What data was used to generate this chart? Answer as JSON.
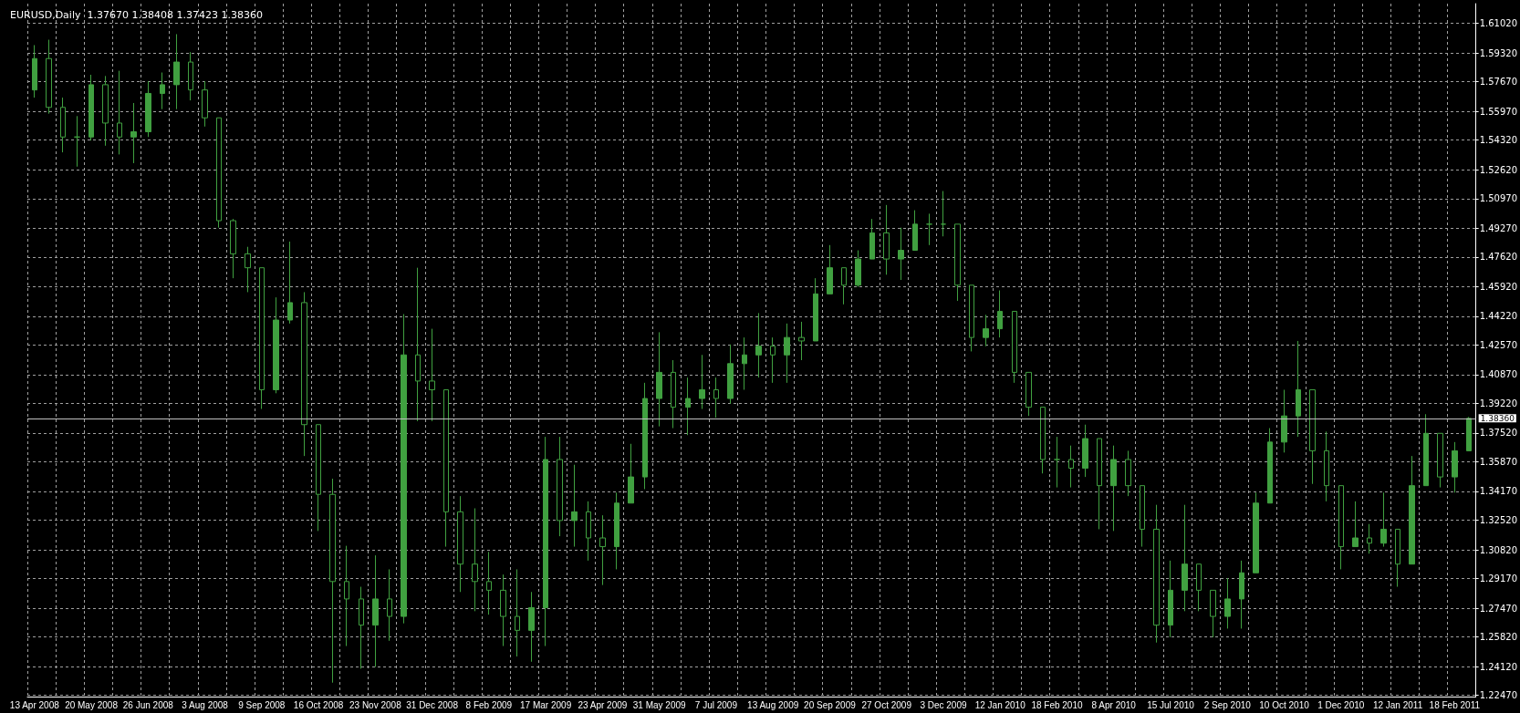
{
  "chart_data": {
    "type": "candlestick",
    "title": "EURUSD,Daily  1.37670 1.38408 1.37423 1.38360",
    "categories": [
      "13 Apr 2008",
      null,
      null,
      null,
      "20 May 2008",
      null,
      null,
      null,
      "26 Jun 2008",
      null,
      null,
      null,
      "3 Aug 2008",
      null,
      null,
      null,
      "9 Sep 2008",
      null,
      null,
      null,
      "16 Oct 2008",
      null,
      null,
      null,
      "23 Nov 2008",
      null,
      null,
      null,
      "31 Dec 2008",
      null,
      null,
      null,
      "8 Feb 2009",
      null,
      null,
      null,
      "17 Mar 2009",
      null,
      null,
      null,
      "23 Apr 2009",
      null,
      null,
      null,
      "31 May 2009",
      null,
      null,
      null,
      "7 Jul 2009",
      null,
      null,
      null,
      "13 Aug 2009",
      null,
      null,
      null,
      "20 Sep 2009",
      null,
      null,
      null,
      "27 Oct 2009",
      null,
      null,
      null,
      "3 Dec 2009",
      null,
      null,
      null,
      "12 Jan 2010",
      null,
      null,
      null,
      "18 Feb 2010",
      null,
      null,
      null,
      "8 Apr 2010",
      null,
      null,
      null,
      "15 Jul 2010",
      null,
      null,
      null,
      "2 Sep 2010",
      null,
      null,
      null,
      "10 Oct 2010",
      null,
      null,
      null,
      "1 Dec 2010",
      null,
      null,
      null,
      "12 Jan 2011",
      null,
      null,
      null,
      "18 Feb 2011",
      null
    ],
    "color": "#40a040",
    "ohlc": [
      [
        1.572,
        1.5977,
        1.5676,
        1.59
      ],
      [
        1.59,
        1.6008,
        1.5584,
        1.562
      ],
      [
        1.562,
        1.5676,
        1.5362,
        1.545
      ],
      [
        1.545,
        1.557,
        1.528,
        1.545
      ],
      [
        1.545,
        1.5807,
        1.543,
        1.575
      ],
      [
        1.575,
        1.58,
        1.54,
        1.553
      ],
      [
        1.553,
        1.583,
        1.535,
        1.545
      ],
      [
        1.545,
        1.5645,
        1.53,
        1.548
      ],
      [
        1.548,
        1.577,
        1.545,
        1.57
      ],
      [
        1.57,
        1.582,
        1.561,
        1.575
      ],
      [
        1.575,
        1.604,
        1.561,
        1.588
      ],
      [
        1.588,
        1.5937,
        1.566,
        1.572
      ],
      [
        1.572,
        1.577,
        1.551,
        1.556
      ],
      [
        1.556,
        1.556,
        1.493,
        1.497
      ],
      [
        1.497,
        1.498,
        1.464,
        1.478
      ],
      [
        1.478,
        1.482,
        1.456,
        1.47
      ],
      [
        1.47,
        1.47,
        1.389,
        1.4
      ],
      [
        1.4,
        1.453,
        1.398,
        1.44
      ],
      [
        1.44,
        1.485,
        1.438,
        1.45
      ],
      [
        1.45,
        1.456,
        1.362,
        1.38
      ],
      [
        1.38,
        1.38,
        1.319,
        1.34
      ],
      [
        1.34,
        1.349,
        1.232,
        1.29
      ],
      [
        1.29,
        1.3105,
        1.253,
        1.28
      ],
      [
        1.28,
        1.287,
        1.24,
        1.265
      ],
      [
        1.265,
        1.305,
        1.241,
        1.28
      ],
      [
        1.28,
        1.297,
        1.256,
        1.27
      ],
      [
        1.27,
        1.4434,
        1.266,
        1.42
      ],
      [
        1.42,
        1.47,
        1.382,
        1.405
      ],
      [
        1.405,
        1.435,
        1.382,
        1.4
      ],
      [
        1.4,
        1.4,
        1.31,
        1.33
      ],
      [
        1.33,
        1.339,
        1.284,
        1.3
      ],
      [
        1.3,
        1.332,
        1.273,
        1.29
      ],
      [
        1.29,
        1.307,
        1.271,
        1.285
      ],
      [
        1.285,
        1.294,
        1.253,
        1.27
      ],
      [
        1.27,
        1.297,
        1.247,
        1.262
      ],
      [
        1.262,
        1.284,
        1.244,
        1.275
      ],
      [
        1.275,
        1.373,
        1.253,
        1.36
      ],
      [
        1.36,
        1.373,
        1.316,
        1.325
      ],
      [
        1.325,
        1.357,
        1.31,
        1.33
      ],
      [
        1.33,
        1.336,
        1.302,
        1.315
      ],
      [
        1.315,
        1.328,
        1.288,
        1.31
      ],
      [
        1.31,
        1.341,
        1.297,
        1.335
      ],
      [
        1.335,
        1.369,
        1.335,
        1.35
      ],
      [
        1.35,
        1.404,
        1.343,
        1.395
      ],
      [
        1.395,
        1.433,
        1.379,
        1.41
      ],
      [
        1.41,
        1.417,
        1.378,
        1.39
      ],
      [
        1.39,
        1.407,
        1.374,
        1.395
      ],
      [
        1.395,
        1.42,
        1.389,
        1.4
      ],
      [
        1.4,
        1.407,
        1.384,
        1.395
      ],
      [
        1.395,
        1.426,
        1.392,
        1.415
      ],
      [
        1.415,
        1.43,
        1.4,
        1.42
      ],
      [
        1.42,
        1.444,
        1.407,
        1.425
      ],
      [
        1.425,
        1.43,
        1.404,
        1.42
      ],
      [
        1.42,
        1.438,
        1.404,
        1.43
      ],
      [
        1.43,
        1.439,
        1.417,
        1.428
      ],
      [
        1.428,
        1.464,
        1.428,
        1.455
      ],
      [
        1.455,
        1.483,
        1.455,
        1.47
      ],
      [
        1.47,
        1.47,
        1.449,
        1.46
      ],
      [
        1.46,
        1.48,
        1.459,
        1.475
      ],
      [
        1.475,
        1.498,
        1.475,
        1.49
      ],
      [
        1.49,
        1.506,
        1.466,
        1.475
      ],
      [
        1.475,
        1.493,
        1.463,
        1.48
      ],
      [
        1.48,
        1.503,
        1.48,
        1.495
      ],
      [
        1.495,
        1.501,
        1.483,
        1.495
      ],
      [
        1.495,
        1.514,
        1.488,
        1.495
      ],
      [
        1.495,
        1.495,
        1.451,
        1.46
      ],
      [
        1.46,
        1.46,
        1.422,
        1.43
      ],
      [
        1.43,
        1.443,
        1.425,
        1.435
      ],
      [
        1.435,
        1.457,
        1.43,
        1.445
      ],
      [
        1.445,
        1.445,
        1.404,
        1.41
      ],
      [
        1.41,
        1.41,
        1.385,
        1.39
      ],
      [
        1.39,
        1.39,
        1.352,
        1.36
      ],
      [
        1.36,
        1.373,
        1.344,
        1.36
      ],
      [
        1.36,
        1.368,
        1.344,
        1.355
      ],
      [
        1.355,
        1.38,
        1.35,
        1.372
      ],
      [
        1.372,
        1.372,
        1.32,
        1.345
      ],
      [
        1.345,
        1.368,
        1.319,
        1.36
      ],
      [
        1.36,
        1.365,
        1.339,
        1.345
      ],
      [
        1.345,
        1.345,
        1.31,
        1.32
      ],
      [
        1.32,
        1.334,
        1.255,
        1.265
      ],
      [
        1.265,
        1.302,
        1.258,
        1.285
      ],
      [
        1.285,
        1.334,
        1.273,
        1.3
      ],
      [
        1.3,
        1.3,
        1.273,
        1.285
      ],
      [
        1.285,
        1.285,
        1.258,
        1.27
      ],
      [
        1.27,
        1.292,
        1.263,
        1.28
      ],
      [
        1.28,
        1.302,
        1.263,
        1.295
      ],
      [
        1.295,
        1.341,
        1.295,
        1.335
      ],
      [
        1.335,
        1.378,
        1.335,
        1.37
      ],
      [
        1.37,
        1.4,
        1.364,
        1.385
      ],
      [
        1.385,
        1.428,
        1.373,
        1.4
      ],
      [
        1.4,
        1.4,
        1.346,
        1.365
      ],
      [
        1.365,
        1.376,
        1.336,
        1.345
      ],
      [
        1.345,
        1.345,
        1.297,
        1.31
      ],
      [
        1.31,
        1.336,
        1.31,
        1.315
      ],
      [
        1.315,
        1.323,
        1.306,
        1.312
      ],
      [
        1.312,
        1.341,
        1.31,
        1.32
      ],
      [
        1.32,
        1.32,
        1.287,
        1.3
      ],
      [
        1.3,
        1.362,
        1.3,
        1.345
      ],
      [
        1.345,
        1.386,
        1.345,
        1.375
      ],
      [
        1.375,
        1.375,
        1.344,
        1.35
      ],
      [
        1.35,
        1.37,
        1.341,
        1.365
      ],
      [
        1.365,
        1.3844,
        1.365,
        1.3836
      ]
    ],
    "ylim": [
      1.224,
      1.6215
    ],
    "yticks": [
      {
        "value": 1.2247,
        "label": "1.22470"
      },
      {
        "value": 1.2412,
        "label": "1.24120"
      },
      {
        "value": 1.2582,
        "label": "1.25820"
      },
      {
        "value": 1.2747,
        "label": "1.27470"
      },
      {
        "value": 1.2917,
        "label": "1.29170"
      },
      {
        "value": 1.3082,
        "label": "1.30820"
      },
      {
        "value": 1.3252,
        "label": "1.32520"
      },
      {
        "value": 1.3417,
        "label": "1.34170"
      },
      {
        "value": 1.3587,
        "label": "1.35870"
      },
      {
        "value": 1.3752,
        "label": "1.37520"
      },
      {
        "value": 1.3922,
        "label": "1.39220"
      },
      {
        "value": 1.4087,
        "label": "1.40870"
      },
      {
        "value": 1.4257,
        "label": "1.42570"
      },
      {
        "value": 1.4422,
        "label": "1.44220"
      },
      {
        "value": 1.4592,
        "label": "1.45920"
      },
      {
        "value": 1.4762,
        "label": "1.47620"
      },
      {
        "value": 1.4927,
        "label": "1.49270"
      },
      {
        "value": 1.5097,
        "label": "1.50970"
      },
      {
        "value": 1.5262,
        "label": "1.52620"
      },
      {
        "value": 1.5432,
        "label": "1.54320"
      },
      {
        "value": 1.5597,
        "label": "1.55970"
      },
      {
        "value": 1.5767,
        "label": "1.57670"
      },
      {
        "value": 1.5932,
        "label": "1.59320"
      },
      {
        "value": 1.6102,
        "label": "1.61020"
      }
    ],
    "ref_lines": [
      {
        "axis": "y",
        "value": 1.3836,
        "label": "1.38360",
        "color": "#c0c0c0"
      }
    ],
    "grid": true
  }
}
